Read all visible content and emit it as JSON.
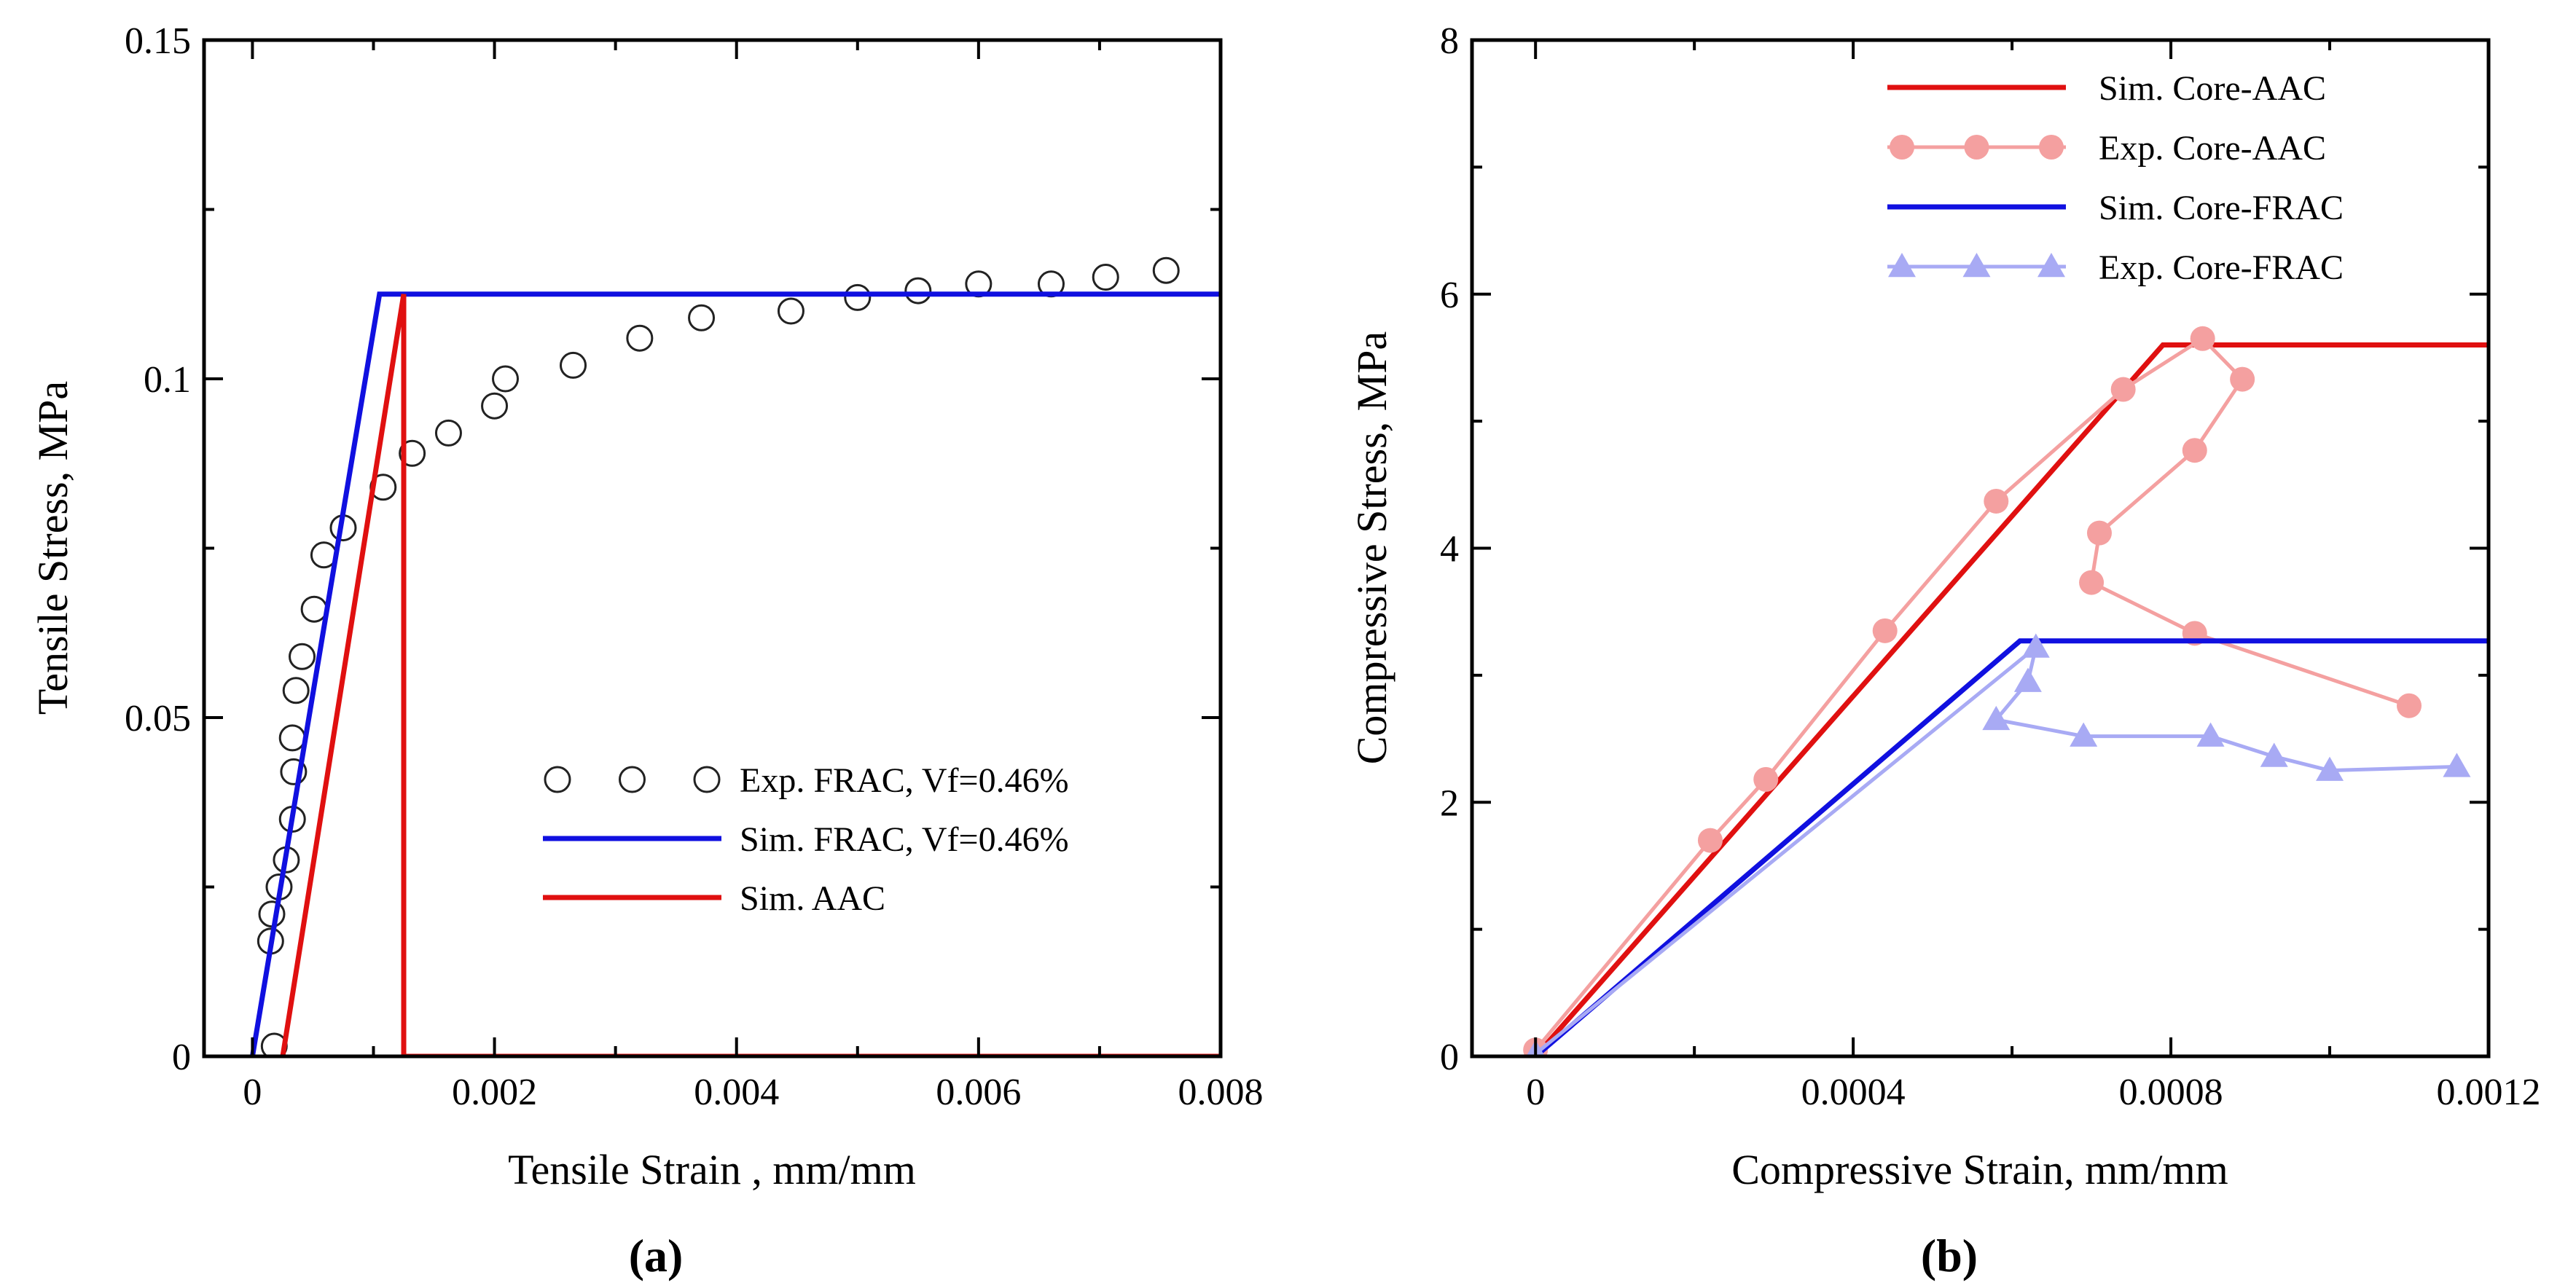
{
  "chart_data": [
    {
      "panel": "a",
      "panel_label": "(a)",
      "type": "line",
      "xlabel": "Tensile Strain , mm/mm",
      "ylabel": "Tensile Stress, MPa",
      "xlim": [
        -0.0004,
        0.008
      ],
      "ylim": [
        0,
        0.15
      ],
      "xticks": [
        0,
        0.002,
        0.004,
        0.006,
        0.008
      ],
      "xtick_labels": [
        "0",
        "0.002",
        "0.004",
        "0.006",
        "0.008"
      ],
      "yticks": [
        0,
        0.05,
        0.1,
        0.15
      ],
      "ytick_labels": [
        "0",
        "0.05",
        "0.1",
        "0.15"
      ],
      "legend_position": "lower-right",
      "grid": false,
      "series": [
        {
          "name": "Exp. FRAC, Vf=0.46%",
          "style": "open-circle",
          "color": "#000000",
          "x": [
            0.00018,
            0.00015,
            0.00016,
            0.00022,
            0.00028,
            0.00033,
            0.00034,
            0.00033,
            0.00036,
            0.00041,
            0.00051,
            0.00059,
            0.00075,
            0.00108,
            0.00132,
            0.00162,
            0.002,
            0.00209,
            0.00265,
            0.0032,
            0.00371,
            0.00445,
            0.005,
            0.0055,
            0.006,
            0.0066,
            0.00705,
            0.00755
          ],
          "y": [
            0.0015,
            0.017,
            0.021,
            0.025,
            0.029,
            0.035,
            0.042,
            0.047,
            0.054,
            0.059,
            0.066,
            0.074,
            0.078,
            0.084,
            0.089,
            0.092,
            0.096,
            0.1,
            0.102,
            0.106,
            0.109,
            0.11,
            0.112,
            0.113,
            0.114,
            0.114,
            0.115,
            0.116
          ]
        },
        {
          "name": "Sim. FRAC, Vf=0.46%",
          "style": "line",
          "color": "#1010e0",
          "x": [
            0.0,
            0.00105,
            0.008
          ],
          "y": [
            0.0,
            0.1125,
            0.1125
          ]
        },
        {
          "name": "Sim. AAC",
          "style": "line",
          "color": "#e01010",
          "x": [
            0.00025,
            0.00125,
            0.00125,
            0.008
          ],
          "y": [
            0.0,
            0.1125,
            0.0,
            0.0
          ]
        }
      ]
    },
    {
      "panel": "b",
      "panel_label": "(b)",
      "type": "line",
      "xlabel": "Compressive Strain, mm/mm",
      "ylabel": "Compressive Stress, MPa",
      "xlim": [
        -8e-05,
        0.0012
      ],
      "ylim": [
        0,
        8
      ],
      "xticks": [
        0,
        0.0004,
        0.0008,
        0.0012
      ],
      "xtick_labels": [
        "0",
        "0.0004",
        "0.0008",
        "0.0012"
      ],
      "yticks": [
        0,
        2,
        4,
        6,
        8
      ],
      "ytick_labels": [
        "0",
        "2",
        "4",
        "6",
        "8"
      ],
      "legend_position": "top-right",
      "grid": false,
      "series": [
        {
          "name": "Sim. Core-AAC",
          "style": "line",
          "color": "#e01010",
          "x": [
            0.0,
            0.00079,
            0.0012
          ],
          "y": [
            0.0,
            5.6,
            5.6
          ]
        },
        {
          "name": "Exp. Core-AAC",
          "style": "line-filled-circle",
          "color": "#f4a0a0",
          "x": [
            0.0,
            0.00022,
            0.00029,
            0.00044,
            0.00058,
            0.00074,
            0.00084,
            0.00089,
            0.00083,
            0.00071,
            0.0007,
            0.00083,
            0.0011
          ],
          "y": [
            0.05,
            1.7,
            2.18,
            3.35,
            4.37,
            5.25,
            5.65,
            5.33,
            4.77,
            4.12,
            3.73,
            3.33,
            2.76
          ]
        },
        {
          "name": "Sim. Core-FRAC",
          "style": "line",
          "color": "#1010e0",
          "x": [
            0.0,
            0.00061,
            0.0012
          ],
          "y": [
            0.0,
            3.27,
            3.27
          ]
        },
        {
          "name": "Exp. Core-FRAC",
          "style": "line-filled-triangle",
          "color": "#a8aaf4",
          "x": [
            0.0,
            0.00063,
            0.00062,
            0.00058,
            0.00069,
            0.00085,
            0.00093,
            0.001,
            0.00116
          ],
          "y": [
            0.02,
            3.22,
            2.95,
            2.65,
            2.52,
            2.52,
            2.36,
            2.25,
            2.28
          ]
        }
      ]
    }
  ]
}
